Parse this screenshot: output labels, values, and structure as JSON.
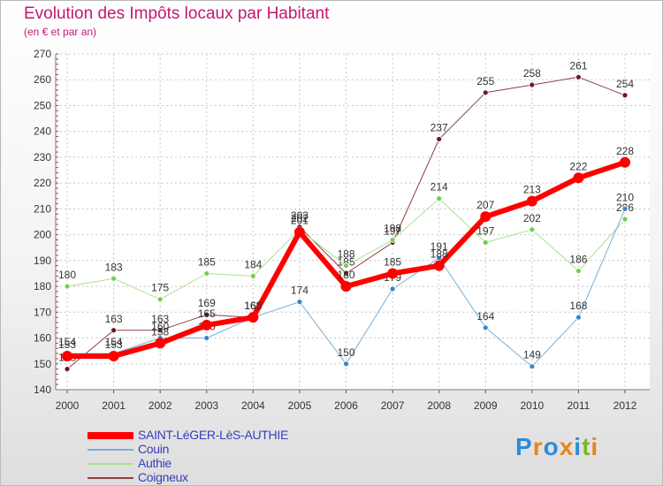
{
  "header": {
    "title": "Evolution des Impôts locaux par Habitant",
    "subtitle": "(en € et par an)"
  },
  "logo": {
    "text": "Proxiti",
    "colors": [
      "#2e8bd8",
      "#e8841f",
      "#2e8bd8",
      "#e8841f",
      "#2e8bd8",
      "#79b829",
      "#e8841f"
    ]
  },
  "chart_data": {
    "type": "line",
    "title": "Evolution des Impôts locaux par Habitant",
    "subtitle": "(en € et par an)",
    "xlabel": "",
    "ylabel": "",
    "x": [
      "2000",
      "2001",
      "2002",
      "2003",
      "2004",
      "2005",
      "2006",
      "2007",
      "2008",
      "2009",
      "2010",
      "2011",
      "2012"
    ],
    "ylim": [
      140,
      270
    ],
    "yticks": [
      140,
      150,
      160,
      170,
      180,
      190,
      200,
      210,
      220,
      230,
      240,
      250,
      260,
      270
    ],
    "grid": true,
    "legend_position": "bottom-left",
    "series": [
      {
        "name": "Coigneux",
        "color": "#6b1a1f",
        "line_color": "#8f3e42",
        "width": 1,
        "values": [
          148,
          163,
          163,
          169,
          168,
          203,
          185,
          197,
          237,
          255,
          258,
          261,
          254
        ],
        "labels": [
          "148",
          "163",
          "163",
          "169",
          "168",
          "203",
          "185",
          "197",
          "237",
          "255",
          "258",
          "261",
          "254"
        ]
      },
      {
        "name": "Authie",
        "color": "#6fd14a",
        "line_color": "#a9e28f",
        "width": 1,
        "values": [
          180,
          183,
          175,
          185,
          184,
          202,
          188,
          198,
          214,
          197,
          202,
          186,
          206
        ],
        "labels": [
          "180",
          "183",
          "175",
          "185",
          "184",
          "202",
          "188",
          "198",
          "214",
          "197",
          "202",
          "186",
          "206"
        ]
      },
      {
        "name": "Couin",
        "color": "#3b86c4",
        "line_color": "#7aaed6",
        "width": 1,
        "values": [
          154,
          154,
          160,
          160,
          168,
          174,
          150,
          179,
          191,
          164,
          149,
          168,
          210
        ],
        "labels": [
          "154",
          "154",
          "160",
          "160",
          "168",
          "174",
          "150",
          "179",
          "191",
          "164",
          "149",
          "168",
          "210"
        ]
      },
      {
        "name": "SAINT-LéGER-LèS-AUTHIE",
        "color": "#ff0000",
        "line_color": "#ff0000",
        "width": 6,
        "values": [
          153,
          153,
          158,
          165,
          168,
          201,
          180,
          185,
          188,
          207,
          213,
          222,
          228
        ],
        "labels": [
          "153",
          "153",
          "158",
          "165",
          "168",
          "201",
          "180",
          "185",
          "188",
          "207",
          "213",
          "222",
          "228"
        ]
      }
    ]
  },
  "legend": {
    "items": [
      {
        "label": "SAINT-LéGER-LèS-AUTHIE",
        "color": "#ff0000",
        "thickness": 8
      },
      {
        "label": "Couin",
        "color": "#7aaed6",
        "thickness": 2
      },
      {
        "label": "Authie",
        "color": "#a9e28f",
        "thickness": 2
      },
      {
        "label": "Coigneux",
        "color": "#8f3e42",
        "thickness": 2
      }
    ]
  }
}
